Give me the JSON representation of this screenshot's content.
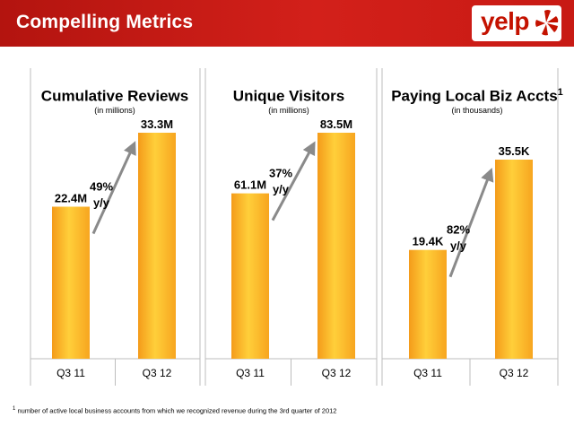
{
  "header": {
    "title": "Compelling Metrics",
    "logo_text": "yelp"
  },
  "growth_suffix": "y/y",
  "chart_data": [
    {
      "type": "bar",
      "title": "Cumulative Reviews",
      "title_sup": "",
      "subtitle": "(in millions)",
      "categories": [
        "Q3 11",
        "Q3 12"
      ],
      "values": [
        22.4,
        33.3
      ],
      "value_labels": [
        "22.4M",
        "33.3M"
      ],
      "growth": "49%",
      "ylim": [
        0,
        40
      ]
    },
    {
      "type": "bar",
      "title": "Unique Visitors",
      "title_sup": "",
      "subtitle": "(in millions)",
      "categories": [
        "Q3 11",
        "Q3 12"
      ],
      "values": [
        61.1,
        83.5
      ],
      "value_labels": [
        "61.1M",
        "83.5M"
      ],
      "growth": "37%",
      "ylim": [
        0,
        100
      ]
    },
    {
      "type": "bar",
      "title": "Paying Local Biz Accts",
      "title_sup": "1",
      "subtitle": "(in thousands)",
      "categories": [
        "Q3 11",
        "Q3 12"
      ],
      "values": [
        19.4,
        35.5
      ],
      "value_labels": [
        "19.4K",
        "35.5K"
      ],
      "growth": "82%",
      "ylim": [
        0,
        45
      ]
    }
  ],
  "footnote": {
    "marker": "1",
    "text": "number of active local business accounts from which we recognized revenue during the 3rd quarter of 2012"
  },
  "colors": {
    "header": "#c81a14",
    "bar_light": "#ffd43b",
    "bar_dark": "#f39a1a",
    "arrow": "#8a8a8a",
    "panel_border": "#bdbdbd"
  }
}
